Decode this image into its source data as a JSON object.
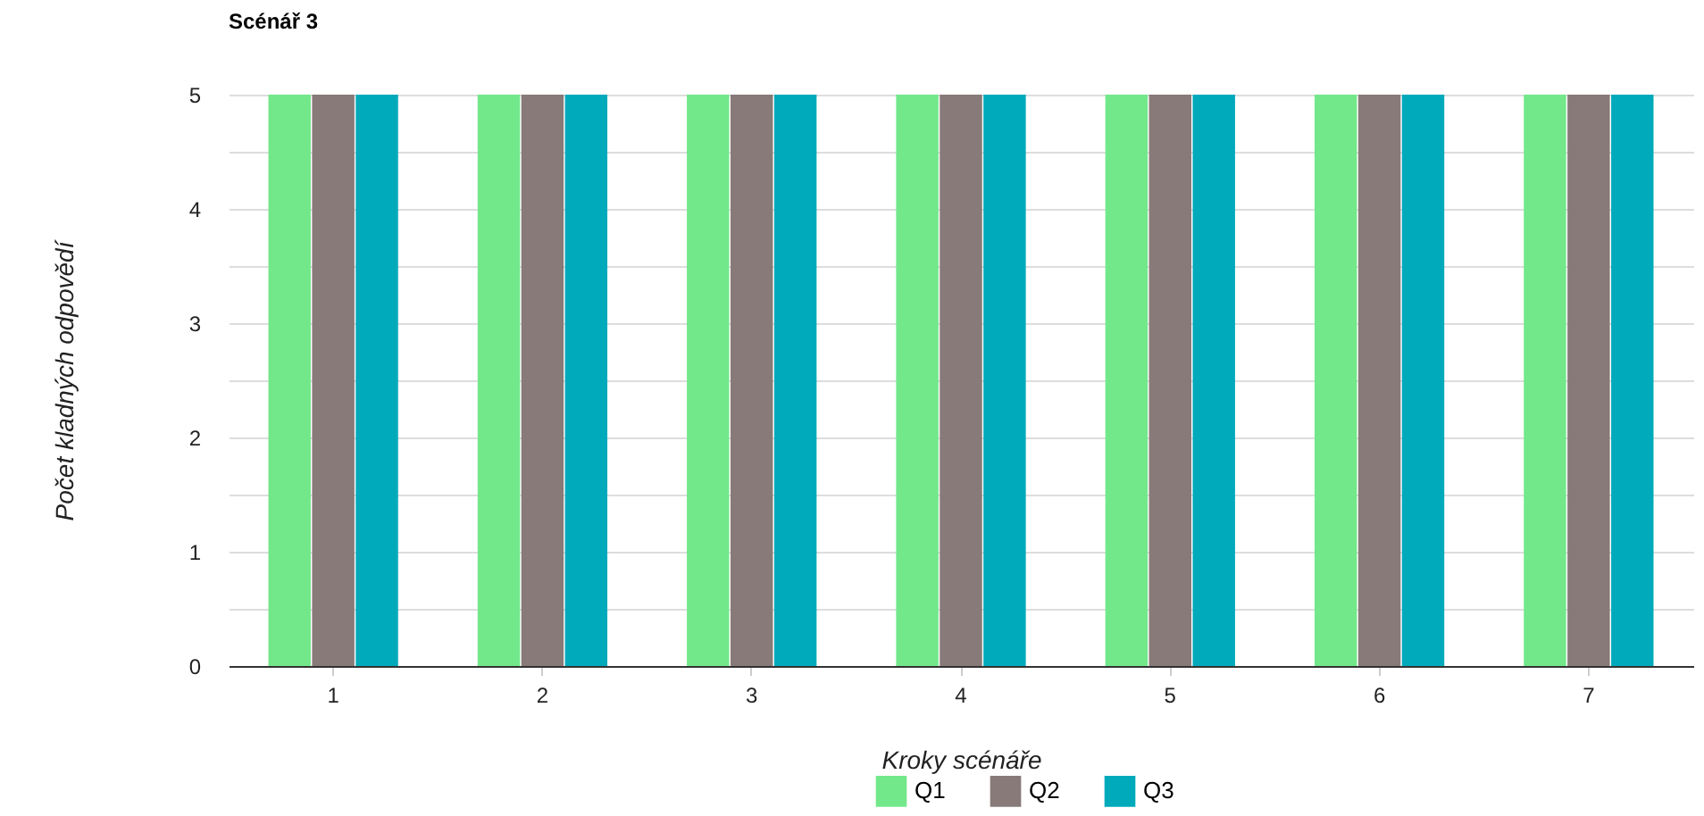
{
  "chart_data": {
    "type": "bar",
    "title": "Scénář 3",
    "xlabel": "Kroky scénáře",
    "ylabel": "Počet kladných odpovědí",
    "categories": [
      "1",
      "2",
      "3",
      "4",
      "5",
      "6",
      "7"
    ],
    "series": [
      {
        "name": "Q1",
        "color": "#72e88a",
        "values": [
          5,
          5,
          5,
          5,
          5,
          5,
          5
        ]
      },
      {
        "name": "Q2",
        "color": "#877a78",
        "values": [
          5,
          5,
          5,
          5,
          5,
          5,
          5
        ]
      },
      {
        "name": "Q3",
        "color": "#00aabb",
        "values": [
          5,
          5,
          5,
          5,
          5,
          5,
          5
        ]
      }
    ],
    "ylim": [
      0,
      5
    ],
    "yticks": [
      0,
      {
        "value": 0.5,
        "label": null
      },
      1,
      {
        "value": 1.5,
        "label": null
      },
      2,
      {
        "value": 2.5,
        "label": null
      },
      3,
      {
        "value": 3.5,
        "label": null
      },
      4,
      {
        "value": 4.5,
        "label": null
      },
      5
    ],
    "grid": "y",
    "legend": "bottom"
  }
}
